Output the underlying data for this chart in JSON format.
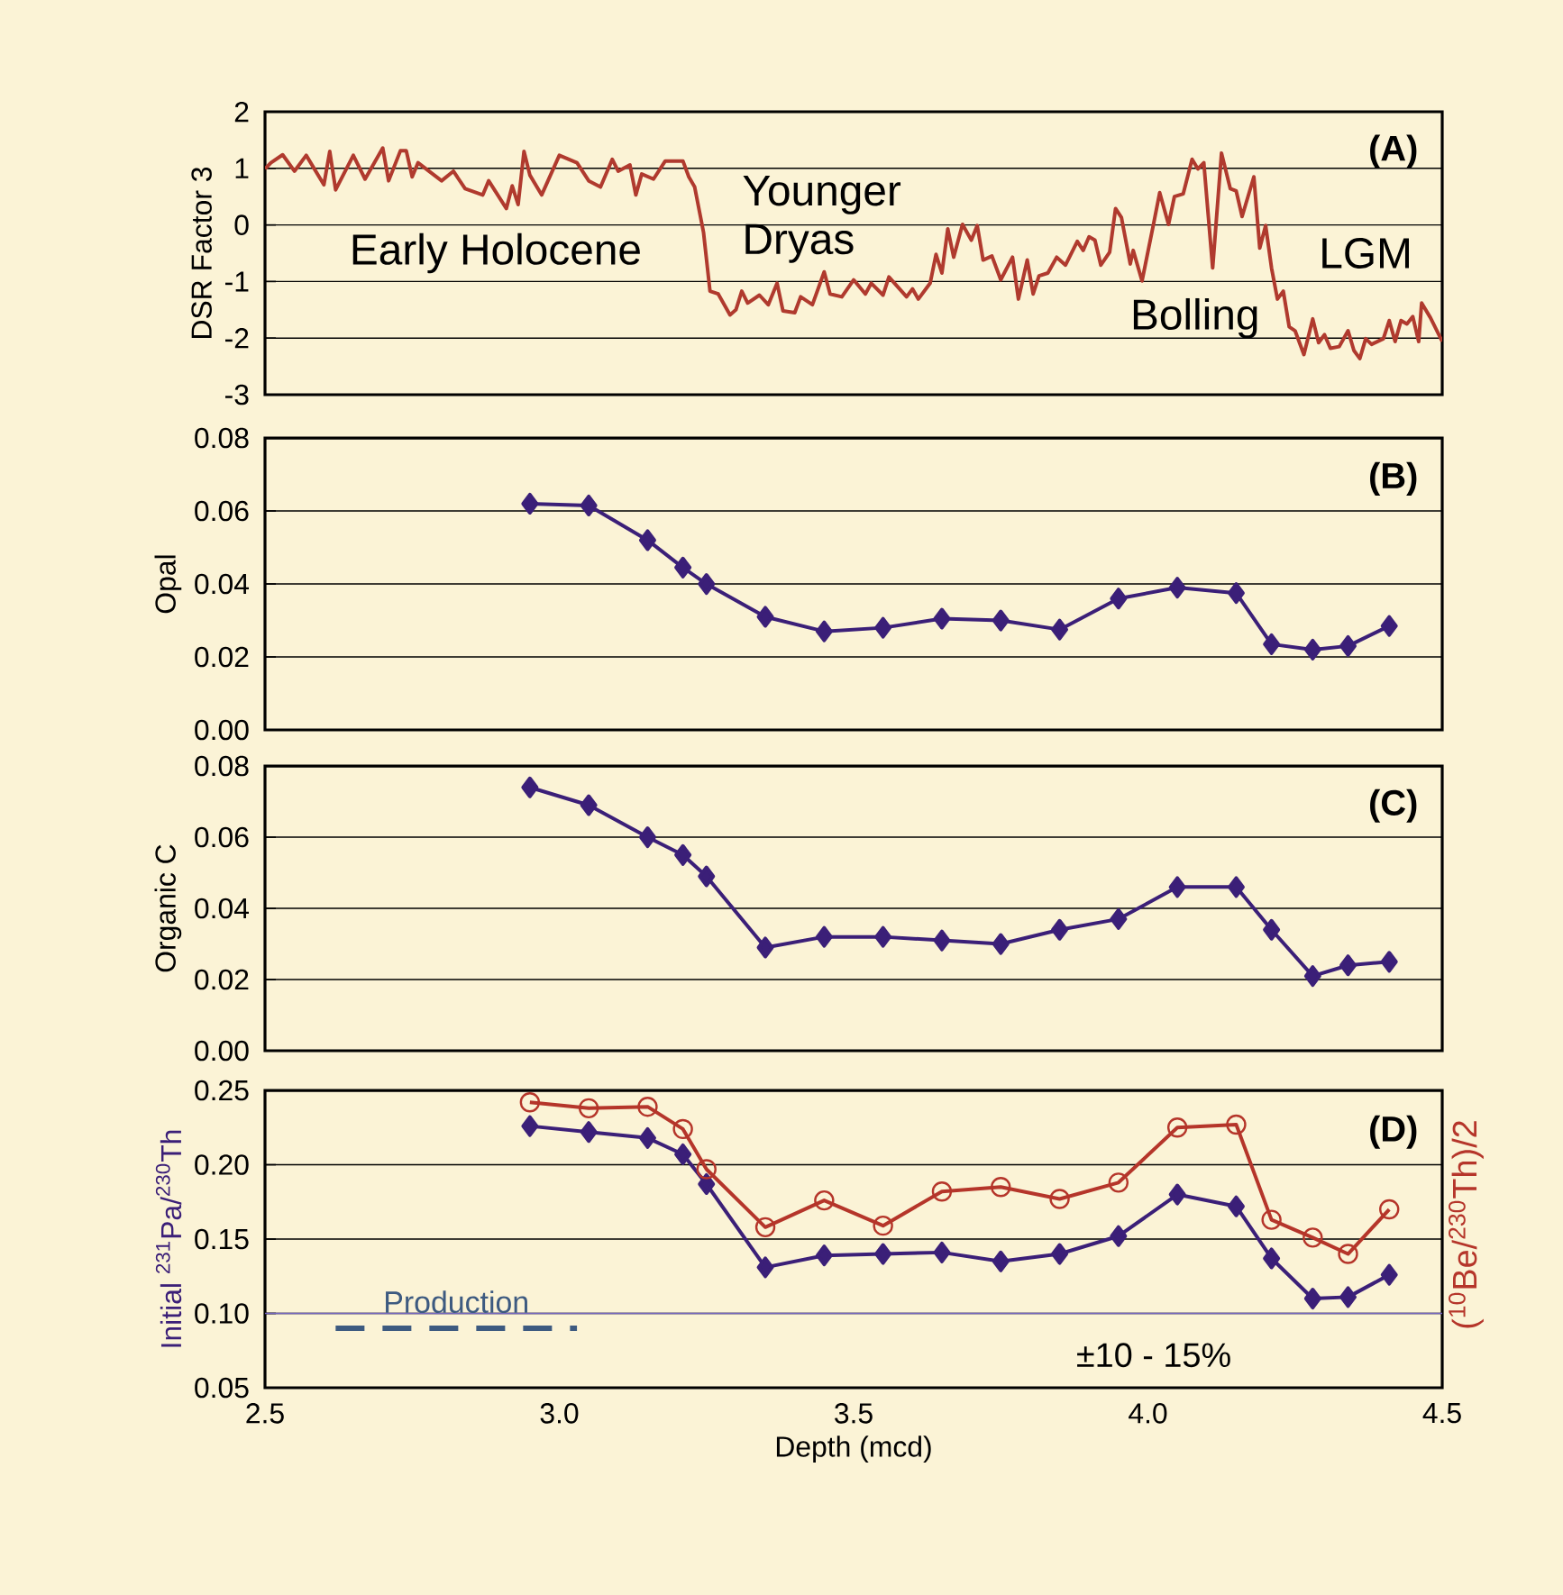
{
  "chart_data": [
    {
      "type": "line",
      "ylabel": "DSR Factor 3",
      "xlim": [
        2.5,
        4.5
      ],
      "ylim": [
        -3,
        2
      ],
      "yticks": [
        -3,
        -2,
        -1,
        0,
        1,
        2
      ],
      "grid": "y",
      "tick_labels": "y",
      "annotations": [
        "(A)",
        "Early Holocene",
        "Younger Dryas",
        "Bolling",
        "LGM"
      ],
      "x": [
        2.5,
        2.51,
        2.53,
        2.55,
        2.57,
        2.6,
        2.61,
        2.62,
        2.65,
        2.67,
        2.7,
        2.71,
        2.73,
        2.74,
        2.75,
        2.76,
        2.8,
        2.82,
        2.84,
        2.87,
        2.88,
        2.91,
        2.92,
        2.93,
        2.94,
        2.95,
        2.97,
        3.0,
        3.03,
        3.05,
        3.07,
        3.09,
        3.1,
        3.12,
        3.13,
        3.14,
        3.16,
        3.18,
        3.21,
        3.22,
        3.23,
        3.245,
        3.256,
        3.27,
        3.29,
        3.3,
        3.31,
        3.32,
        3.34,
        3.355,
        3.37,
        3.38,
        3.4,
        3.41,
        3.43,
        3.45,
        3.46,
        3.48,
        3.5,
        3.52,
        3.53,
        3.55,
        3.56,
        3.59,
        3.6,
        3.61,
        3.63,
        3.64,
        3.65,
        3.66,
        3.67,
        3.685,
        3.7,
        3.71,
        3.72,
        3.735,
        3.75,
        3.77,
        3.78,
        3.795,
        3.805,
        3.815,
        3.83,
        3.845,
        3.86,
        3.88,
        3.89,
        3.9,
        3.91,
        3.92,
        3.935,
        3.945,
        3.955,
        3.97,
        3.975,
        3.99,
        4.01,
        4.02,
        4.035,
        4.045,
        4.06,
        4.075,
        4.085,
        4.095,
        4.11,
        4.125,
        4.14,
        4.15,
        4.16,
        4.18,
        4.19,
        4.2,
        4.21,
        4.22,
        4.23,
        4.24,
        4.25,
        4.265,
        4.28,
        4.29,
        4.3,
        4.31,
        4.325,
        4.34,
        4.35,
        4.36,
        4.37,
        4.38,
        4.4,
        4.41,
        4.42,
        4.43,
        4.44,
        4.45,
        4.46,
        4.465,
        4.48,
        4.5
      ],
      "series": [
        {
          "color": "#b03a2e",
          "marker": "none",
          "values": [
            0.99,
            1.1,
            1.24,
            0.95,
            1.23,
            0.71,
            1.3,
            0.62,
            1.23,
            0.81,
            1.36,
            0.78,
            1.31,
            1.31,
            0.85,
            1.1,
            0.78,
            0.95,
            0.64,
            0.53,
            0.78,
            0.29,
            0.69,
            0.36,
            1.3,
            0.88,
            0.53,
            1.23,
            1.1,
            0.78,
            0.67,
            1.16,
            0.95,
            1.06,
            0.53,
            0.9,
            0.81,
            1.13,
            1.13,
            0.85,
            0.67,
            -0.13,
            -1.17,
            -1.22,
            -1.59,
            -1.5,
            -1.17,
            -1.38,
            -1.24,
            -1.41,
            -1.03,
            -1.52,
            -1.55,
            -1.27,
            -1.41,
            -0.83,
            -1.22,
            -1.27,
            -0.97,
            -1.22,
            -1.03,
            -1.24,
            -0.92,
            -1.27,
            -1.13,
            -1.31,
            -1.03,
            -0.52,
            -0.85,
            -0.07,
            -0.57,
            0.01,
            -0.27,
            -0.01,
            -0.62,
            -0.55,
            -0.97,
            -0.57,
            -1.31,
            -0.62,
            -1.22,
            -0.9,
            -0.85,
            -0.57,
            -0.71,
            -0.29,
            -0.45,
            -0.21,
            -0.27,
            -0.71,
            -0.48,
            0.29,
            0.13,
            -0.69,
            -0.45,
            -0.99,
            0.04,
            0.57,
            0.01,
            0.5,
            0.55,
            1.16,
            0.99,
            1.1,
            -0.76,
            1.27,
            0.64,
            0.6,
            0.15,
            0.85,
            -0.41,
            -0.01,
            -0.76,
            -1.31,
            -1.17,
            -1.8,
            -1.87,
            -2.29,
            -1.66,
            -2.08,
            -1.94,
            -2.18,
            -2.15,
            -1.87,
            -2.22,
            -2.36,
            -2.01,
            -2.11,
            -2.01,
            -1.69,
            -2.06,
            -1.69,
            -1.75,
            -1.62,
            -2.06,
            -1.38,
            -1.64,
            -2.06
          ]
        }
      ]
    },
    {
      "type": "line",
      "ylabel": "Opal",
      "xlim": [
        2.5,
        4.5
      ],
      "ylim": [
        0,
        0.08
      ],
      "yticks": [
        {
          "value": 0,
          "label": "0.00"
        },
        0.02,
        0.04,
        0.06,
        0.08
      ],
      "grid": "y",
      "tick_labels": "y",
      "annotations": [
        "(B)"
      ],
      "x": [
        2.95,
        3.05,
        3.15,
        3.21,
        3.25,
        3.35,
        3.45,
        3.55,
        3.65,
        3.75,
        3.85,
        3.95,
        4.05,
        4.15,
        4.21,
        4.28,
        4.34,
        4.41
      ],
      "series": [
        {
          "color": "#3b1f78",
          "marker": "diamond",
          "values": [
            0.062,
            0.0615,
            0.052,
            0.0445,
            0.04,
            0.031,
            0.027,
            0.028,
            0.0305,
            0.03,
            0.0275,
            0.036,
            0.039,
            0.0375,
            0.0235,
            0.022,
            0.023,
            0.0285
          ]
        }
      ]
    },
    {
      "type": "line",
      "ylabel": "Organic C",
      "xlim": [
        2.5,
        4.5
      ],
      "ylim": [
        0,
        0.08
      ],
      "yticks": [
        {
          "value": 0,
          "label": "0.00"
        },
        0.02,
        0.04,
        0.06,
        0.08
      ],
      "grid": "y",
      "tick_labels": "y",
      "annotations": [
        "(C)"
      ],
      "x": [
        2.95,
        3.05,
        3.15,
        3.21,
        3.25,
        3.35,
        3.45,
        3.55,
        3.65,
        3.75,
        3.85,
        3.95,
        4.05,
        4.15,
        4.21,
        4.28,
        4.34,
        4.41
      ],
      "series": [
        {
          "color": "#3b1f78",
          "marker": "diamond",
          "values": [
            0.074,
            0.069,
            0.06,
            0.055,
            0.049,
            0.029,
            0.032,
            0.032,
            0.031,
            0.03,
            0.034,
            0.037,
            0.046,
            0.046,
            0.034,
            0.021,
            0.024,
            0.025
          ]
        }
      ]
    },
    {
      "type": "line",
      "xlabel": "Depth (mcd)",
      "ylabel": "Initial $^{231}$Pa/$^{230}$Th",
      "y2label": "($^{10}$Be/$^{230}$Th)/2",
      "xlim": [
        2.5,
        4.5
      ],
      "xticks": [
        2.5,
        {
          "value": 3,
          "label": "3.0"
        },
        3.5,
        {
          "value": 4,
          "label": "4.0"
        },
        4.5
      ],
      "ylim": [
        0.05,
        0.25
      ],
      "yticks": [
        0.05,
        {
          "value": 0.1,
          "label": "0.10"
        },
        0.15,
        {
          "value": 0.2,
          "label": "0.20"
        },
        0.25
      ],
      "grid": "y",
      "annotations": [
        "(D)",
        "±10 - 15%"
      ],
      "ref_lines": [
        {
          "axis": "y",
          "value": 0.1,
          "color": "#7466c0"
        }
      ],
      "x": [
        2.95,
        3.05,
        3.15,
        3.21,
        3.25,
        3.35,
        3.45,
        3.55,
        3.65,
        3.75,
        3.85,
        3.95,
        4.05,
        4.15,
        4.21,
        4.28,
        4.34,
        4.41
      ],
      "series": [
        {
          "color": "#3b1f78",
          "marker": "diamond",
          "values": [
            0.226,
            0.222,
            0.218,
            0.207,
            0.187,
            0.131,
            0.139,
            0.14,
            0.141,
            0.135,
            0.14,
            0.152,
            0.18,
            0.172,
            0.137,
            0.11,
            0.111,
            0.126
          ]
        },
        {
          "color": "#b5352a",
          "marker": "circle",
          "values": [
            0.242,
            0.238,
            0.239,
            0.224,
            0.197,
            0.158,
            0.176,
            0.159,
            0.182,
            0.185,
            0.177,
            0.188,
            0.225,
            0.227,
            0.163,
            0.151,
            0.14,
            0.17
          ]
        },
        {
          "name": "Production",
          "type": "line",
          "color": "#3d5a80",
          "marker": "none",
          "line_style": "dashed",
          "x": [
            2.62,
            3.03
          ],
          "values": [
            0.09,
            0.09
          ]
        }
      ]
    }
  ]
}
